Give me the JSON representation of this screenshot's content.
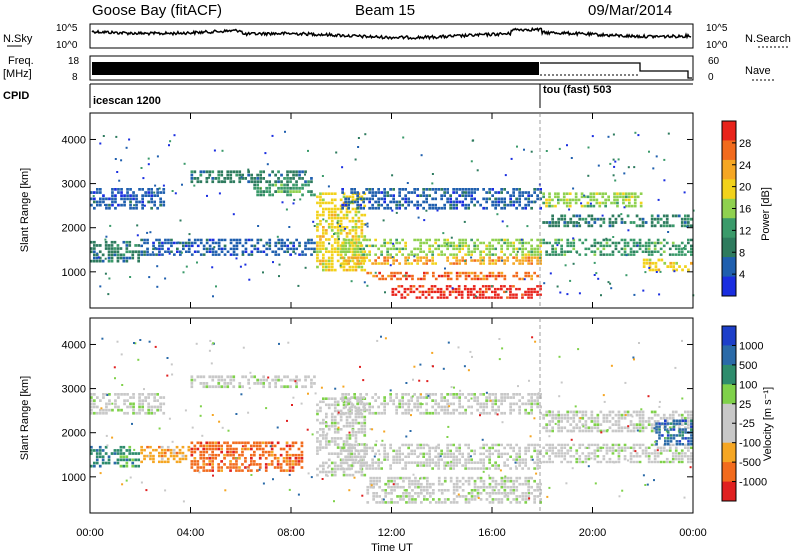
{
  "header": {
    "station": "Goose Bay (fitACF)",
    "beam": "Beam 15",
    "date": "09/Mar/2014"
  },
  "nsky_panel": {
    "left_label": "N.Sky",
    "left_ticks": [
      "10^5",
      "10^0"
    ],
    "right_ticks": [
      "10^5",
      "10^0"
    ],
    "right_label": "N.Search"
  },
  "freq_panel": {
    "left_label_1": "Freq.",
    "left_label_2": "[MHz]",
    "left_ticks": [
      "18",
      "8"
    ],
    "right_ticks": [
      "60",
      "0"
    ],
    "right_label": "Nave"
  },
  "cpid_panel": {
    "label": "CPID",
    "segments": [
      {
        "name": "icescan 1200",
        "start_h": 0,
        "end_h": 18
      },
      {
        "name": "tou (fast) 503",
        "start_h": 18,
        "end_h": 24
      }
    ]
  },
  "power_panel": {
    "ylabel": "Slant Range [km]",
    "colorbar_label": "Power [dB]",
    "colorbar_ticks": [
      "28",
      "24",
      "20",
      "16",
      "12",
      "8",
      "4"
    ],
    "colors": [
      "#e8231b",
      "#f26b1d",
      "#f5a623",
      "#f2d21b",
      "#8fd14f",
      "#3a9a6a",
      "#2e7b5e",
      "#1f5fae",
      "#1a2ee0"
    ]
  },
  "velocity_panel": {
    "ylabel": "Slant Range [km]",
    "colorbar_label": "Velocity [m s⁻¹]",
    "colorbar_ticks": [
      "1000",
      "500",
      "100",
      "25",
      "-25",
      "-100",
      "-500",
      "-1000"
    ],
    "colors": [
      "#1d3fc9",
      "#2a6aa8",
      "#2e8c6c",
      "#7fd14a",
      "#c8c8c8",
      "#c8c8c8",
      "#f5a623",
      "#f26b1d",
      "#e02020"
    ]
  },
  "x_axis": {
    "label": "Time UT",
    "ticks": [
      "00:00",
      "04:00",
      "08:00",
      "12:00",
      "16:00",
      "20:00",
      "00:00"
    ]
  },
  "chart_data": {
    "type": "heatmap",
    "x_range_hours": [
      0,
      24
    ],
    "y_range_km": [
      180,
      4600
    ],
    "y_ticks": [
      "4000",
      "3000",
      "2000",
      "1000"
    ],
    "bands": [
      {
        "panel": "power",
        "t0": 0,
        "t1": 2,
        "r0": 1200,
        "r1": 1700,
        "c": 6
      },
      {
        "panel": "power",
        "t0": 0,
        "t1": 3,
        "r0": 2400,
        "r1": 2900,
        "c": 7
      },
      {
        "panel": "power",
        "t0": 2,
        "t1": 9,
        "r0": 1350,
        "r1": 1750,
        "c": 7
      },
      {
        "panel": "power",
        "t0": 4,
        "t1": 9,
        "r0": 3000,
        "r1": 3300,
        "c": 6
      },
      {
        "panel": "power",
        "t0": 6.5,
        "t1": 9,
        "r0": 2700,
        "r1": 3000,
        "c": 5
      },
      {
        "panel": "power",
        "t0": 9,
        "t1": 11,
        "r0": 1000,
        "r1": 2800,
        "c": 3
      },
      {
        "panel": "power",
        "t0": 10,
        "t1": 18,
        "r0": 1350,
        "r1": 1750,
        "c": 4
      },
      {
        "panel": "power",
        "t0": 10,
        "t1": 18,
        "r0": 1150,
        "r1": 1350,
        "c": 2
      },
      {
        "panel": "power",
        "t0": 11,
        "t1": 18,
        "r0": 800,
        "r1": 1000,
        "c": 1
      },
      {
        "panel": "power",
        "t0": 12,
        "t1": 18,
        "r0": 380,
        "r1": 700,
        "c": 0
      },
      {
        "panel": "power",
        "t0": 10,
        "t1": 18,
        "r0": 2400,
        "r1": 2900,
        "c": 7
      },
      {
        "panel": "power",
        "t0": 18,
        "t1": 22,
        "r0": 2450,
        "r1": 2800,
        "c": 4
      },
      {
        "panel": "power",
        "t0": 18,
        "t1": 24,
        "r0": 1350,
        "r1": 1750,
        "c": 5
      },
      {
        "panel": "power",
        "t0": 18,
        "t1": 24,
        "r0": 2000,
        "r1": 2300,
        "c": 6
      },
      {
        "panel": "power",
        "t0": 22,
        "t1": 24,
        "r0": 1000,
        "r1": 1300,
        "c": 3
      },
      {
        "panel": "velocity",
        "t0": 0,
        "t1": 2,
        "r0": 1200,
        "r1": 1700,
        "c": 2
      },
      {
        "panel": "velocity",
        "t0": 0,
        "t1": 3,
        "r0": 2400,
        "r1": 2900,
        "c": 4
      },
      {
        "panel": "velocity",
        "t0": 4,
        "t1": 8.5,
        "r0": 1100,
        "r1": 1800,
        "c": 7
      },
      {
        "panel": "velocity",
        "t0": 2,
        "t1": 4,
        "r0": 1300,
        "r1": 1700,
        "c": 6
      },
      {
        "panel": "velocity",
        "t0": 4,
        "t1": 9,
        "r0": 3000,
        "r1": 3300,
        "c": 4
      },
      {
        "panel": "velocity",
        "t0": 9,
        "t1": 11,
        "r0": 1000,
        "r1": 2800,
        "c": 4
      },
      {
        "panel": "velocity",
        "t0": 10,
        "t1": 18,
        "r0": 1150,
        "r1": 1750,
        "c": 4
      },
      {
        "panel": "velocity",
        "t0": 11,
        "t1": 18,
        "r0": 380,
        "r1": 1000,
        "c": 4
      },
      {
        "panel": "velocity",
        "t0": 10,
        "t1": 18,
        "r0": 2400,
        "r1": 2900,
        "c": 4
      },
      {
        "panel": "velocity",
        "t0": 18,
        "t1": 24,
        "r0": 1300,
        "r1": 1750,
        "c": 4
      },
      {
        "panel": "velocity",
        "t0": 18,
        "t1": 24,
        "r0": 2000,
        "r1": 2500,
        "c": 4
      },
      {
        "panel": "velocity",
        "t0": 22.5,
        "t1": 24,
        "r0": 1700,
        "r1": 2300,
        "c": 1
      }
    ]
  }
}
